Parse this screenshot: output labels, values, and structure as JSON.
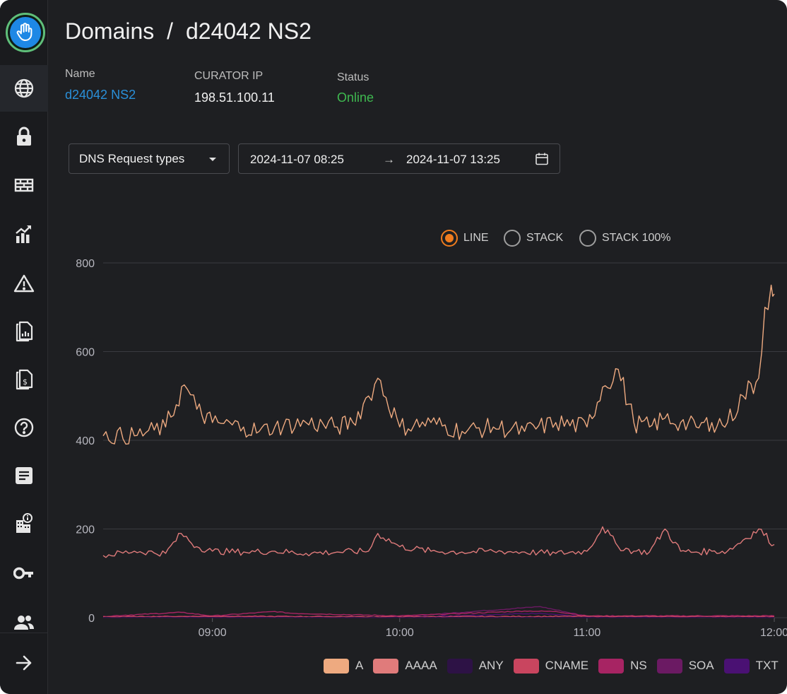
{
  "header": {
    "breadcrumb_root": "Domains",
    "separator": "/",
    "breadcrumb_current": "d24042 NS2"
  },
  "details": {
    "name_label": "Name",
    "name_value": "d24042 NS2",
    "ip_label": "CURATOR IP",
    "ip_value": "198.51.100.11",
    "status_label": "Status",
    "status_value": "Online",
    "status_color": "#3fb950",
    "link_color": "#2a8fd8"
  },
  "controls": {
    "request_type": "DNS Request types",
    "range_start": "2024-11-07 08:25",
    "range_arrow": "→",
    "range_end": "2024-11-07 13:25"
  },
  "modes": {
    "line": "LINE",
    "stack": "STACK",
    "stack100": "STACK 100%",
    "selected": "LINE",
    "accent": "#f07c1e"
  },
  "sidebar": {
    "items": [
      "globe-icon",
      "lock-icon",
      "firewall-icon",
      "analytics-icon",
      "warning-icon",
      "report-icon",
      "billing-icon",
      "help-icon",
      "notes-icon",
      "building-info-icon",
      "key-icon",
      "users-icon"
    ],
    "expand": "arrow-right-icon"
  },
  "chart_data": {
    "type": "line",
    "title": "",
    "xlabel": "",
    "ylabel": "",
    "ylim": [
      0,
      800
    ],
    "y_ticks": [
      0,
      200,
      400,
      600,
      800
    ],
    "x_ticks": [
      "09:00",
      "10:00",
      "11:00",
      "12:00"
    ],
    "x_range": [
      "08:25",
      "12:00"
    ],
    "grid": true,
    "legend_position": "bottom-right",
    "series": [
      {
        "name": "A",
        "color": "#eeaa80",
        "x": [
          "08:25",
          "08:35",
          "08:45",
          "08:51",
          "08:55",
          "09:00",
          "09:10",
          "09:15",
          "09:20",
          "09:30",
          "09:40",
          "09:45",
          "09:50",
          "09:53",
          "10:00",
          "10:10",
          "10:20",
          "10:30",
          "10:40",
          "10:50",
          "11:00",
          "11:05",
          "11:10",
          "11:15",
          "11:20",
          "11:25",
          "11:30",
          "11:35",
          "11:40",
          "11:45",
          "11:50",
          "11:55",
          "11:57",
          "11:59",
          "12:00"
        ],
        "values": [
          410,
          410,
          430,
          525,
          470,
          440,
          430,
          420,
          430,
          440,
          430,
          440,
          500,
          540,
          430,
          440,
          420,
          430,
          420,
          440,
          430,
          520,
          560,
          440,
          430,
          450,
          440,
          430,
          440,
          440,
          500,
          540,
          700,
          750,
          730
        ]
      },
      {
        "name": "AAAA",
        "color": "#e07b7b",
        "x": [
          "08:25",
          "08:35",
          "08:45",
          "08:50",
          "08:55",
          "09:00",
          "09:10",
          "09:20",
          "09:30",
          "09:40",
          "09:50",
          "09:53",
          "10:00",
          "10:10",
          "10:20",
          "10:30",
          "10:40",
          "10:50",
          "11:00",
          "11:05",
          "11:10",
          "11:15",
          "11:20",
          "11:25",
          "11:30",
          "11:35",
          "11:40",
          "11:45",
          "11:50",
          "11:55",
          "12:00"
        ],
        "values": [
          140,
          150,
          145,
          190,
          160,
          150,
          148,
          150,
          145,
          148,
          150,
          190,
          160,
          150,
          148,
          150,
          148,
          145,
          150,
          205,
          160,
          150,
          148,
          200,
          150,
          148,
          150,
          150,
          175,
          200,
          165
        ]
      },
      {
        "name": "ANY",
        "color": "#2d1245",
        "x": [
          "08:25",
          "12:00"
        ],
        "values": [
          0,
          0
        ]
      },
      {
        "name": "CNAME",
        "color": "#c9455f",
        "x": [
          "08:25",
          "09:00",
          "10:00",
          "11:00",
          "12:00"
        ],
        "values": [
          2,
          3,
          2,
          3,
          2
        ]
      },
      {
        "name": "NS",
        "color": "#a72463",
        "x": [
          "08:25",
          "08:50",
          "09:00",
          "09:20",
          "09:25",
          "10:00",
          "10:40",
          "10:50",
          "11:00",
          "12:00"
        ],
        "values": [
          3,
          12,
          4,
          14,
          10,
          4,
          15,
          14,
          4,
          4
        ]
      },
      {
        "name": "SOA",
        "color": "#6b1a63",
        "x": [
          "08:25",
          "09:00",
          "10:00",
          "10:45",
          "11:00",
          "12:00"
        ],
        "values": [
          2,
          3,
          2,
          25,
          3,
          2
        ]
      },
      {
        "name": "TXT",
        "color": "#4a1173",
        "x": [
          "08:25",
          "09:00",
          "10:00",
          "10:45",
          "11:00",
          "12:00"
        ],
        "values": [
          1,
          2,
          1,
          10,
          2,
          1
        ]
      }
    ]
  },
  "legend": {
    "items": [
      {
        "label": "A",
        "color": "#eeaa80"
      },
      {
        "label": "AAAA",
        "color": "#e07b7b"
      },
      {
        "label": "ANY",
        "color": "#2d1245"
      },
      {
        "label": "CNAME",
        "color": "#c9455f"
      },
      {
        "label": "NS",
        "color": "#a72463"
      },
      {
        "label": "SOA",
        "color": "#6b1a63"
      },
      {
        "label": "TXT",
        "color": "#4a1173"
      }
    ]
  }
}
